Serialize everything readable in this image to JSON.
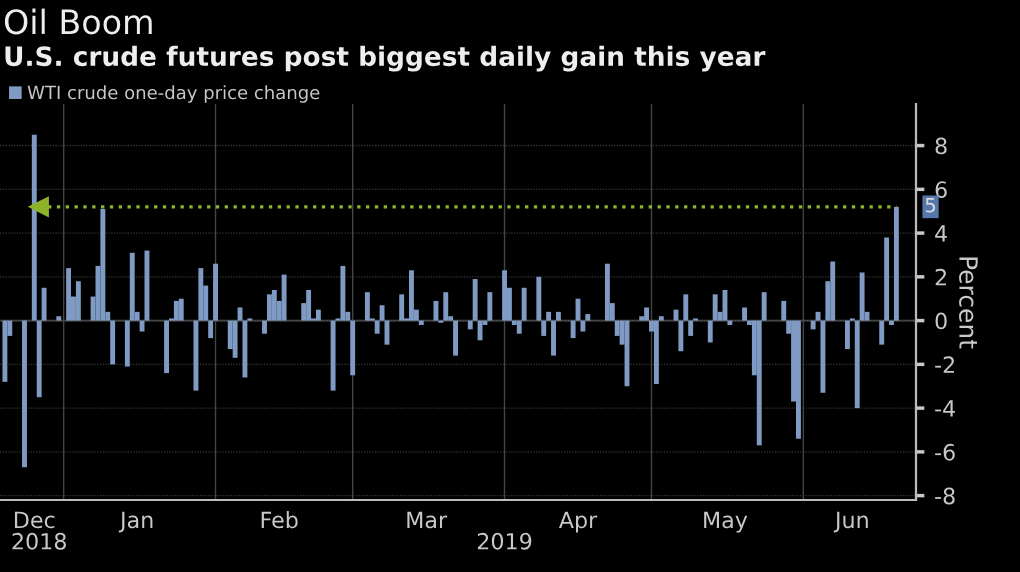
{
  "chart_data": {
    "type": "bar",
    "title": "Oil Boom",
    "subtitle": "U.S. crude futures post biggest daily gain this year",
    "ylabel": "Percent",
    "x": [
      "2018-12-20",
      "2018-12-21",
      "2018-12-24",
      "2018-12-26",
      "2018-12-27",
      "2018-12-28",
      "2018-12-31",
      "2019-01-02",
      "2019-01-03",
      "2019-01-04",
      "2019-01-07",
      "2019-01-08",
      "2019-01-09",
      "2019-01-10",
      "2019-01-11",
      "2019-01-14",
      "2019-01-15",
      "2019-01-16",
      "2019-01-17",
      "2019-01-18",
      "2019-01-22",
      "2019-01-23",
      "2019-01-24",
      "2019-01-25",
      "2019-01-28",
      "2019-01-29",
      "2019-01-30",
      "2019-01-31",
      "2019-02-01",
      "2019-02-04",
      "2019-02-05",
      "2019-02-06",
      "2019-02-07",
      "2019-02-08",
      "2019-02-11",
      "2019-02-12",
      "2019-02-13",
      "2019-02-14",
      "2019-02-15",
      "2019-02-19",
      "2019-02-20",
      "2019-02-21",
      "2019-02-22",
      "2019-02-25",
      "2019-02-26",
      "2019-02-27",
      "2019-02-28",
      "2019-03-01",
      "2019-03-04",
      "2019-03-05",
      "2019-03-06",
      "2019-03-07",
      "2019-03-08",
      "2019-03-11",
      "2019-03-12",
      "2019-03-13",
      "2019-03-14",
      "2019-03-15",
      "2019-03-18",
      "2019-03-19",
      "2019-03-20",
      "2019-03-21",
      "2019-03-22",
      "2019-03-25",
      "2019-03-26",
      "2019-03-27",
      "2019-03-28",
      "2019-03-29",
      "2019-04-01",
      "2019-04-02",
      "2019-04-03",
      "2019-04-04",
      "2019-04-05",
      "2019-04-08",
      "2019-04-09",
      "2019-04-10",
      "2019-04-11",
      "2019-04-12",
      "2019-04-15",
      "2019-04-16",
      "2019-04-17",
      "2019-04-18",
      "2019-04-22",
      "2019-04-23",
      "2019-04-24",
      "2019-04-25",
      "2019-04-26",
      "2019-04-29",
      "2019-04-30",
      "2019-05-01",
      "2019-05-02",
      "2019-05-03",
      "2019-05-06",
      "2019-05-07",
      "2019-05-08",
      "2019-05-09",
      "2019-05-10",
      "2019-05-13",
      "2019-05-14",
      "2019-05-15",
      "2019-05-16",
      "2019-05-17",
      "2019-05-20",
      "2019-05-21",
      "2019-05-22",
      "2019-05-23",
      "2019-05-24",
      "2019-05-28",
      "2019-05-29",
      "2019-05-30",
      "2019-05-31",
      "2019-06-03",
      "2019-06-04",
      "2019-06-05",
      "2019-06-06",
      "2019-06-07",
      "2019-06-10",
      "2019-06-11",
      "2019-06-12",
      "2019-06-13",
      "2019-06-14",
      "2019-06-17",
      "2019-06-18",
      "2019-06-19",
      "2019-06-20"
    ],
    "series": [
      {
        "name": "WTI crude one-day price change",
        "color": "#7f9bc4",
        "values": [
          -2.8,
          -0.7,
          -6.7,
          8.5,
          -3.5,
          1.5,
          0.2,
          2.4,
          1.1,
          1.8,
          1.1,
          2.5,
          5.1,
          0.4,
          -2.0,
          -2.1,
          3.1,
          0.4,
          -0.5,
          3.2,
          -2.4,
          0.1,
          0.9,
          1.0,
          -3.2,
          2.4,
          1.6,
          -0.8,
          2.6,
          -1.3,
          -1.7,
          0.6,
          -2.6,
          0.1,
          -0.6,
          1.2,
          1.4,
          0.9,
          2.1,
          0.8,
          1.4,
          0.1,
          0.5,
          -3.2,
          0.1,
          2.5,
          0.4,
          -2.5,
          1.3,
          0.1,
          -0.6,
          0.7,
          -1.1,
          1.2,
          0.1,
          2.3,
          0.5,
          -0.2,
          0.9,
          -0.1,
          1.3,
          0.2,
          -1.6,
          -0.4,
          1.9,
          -0.9,
          -0.2,
          1.3,
          2.3,
          1.5,
          -0.2,
          -0.6,
          1.5,
          2.0,
          -0.7,
          0.4,
          -1.6,
          0.4,
          -0.8,
          1.0,
          -0.5,
          0.3,
          2.6,
          0.8,
          -0.7,
          -1.1,
          -3.0,
          0.2,
          0.6,
          -0.5,
          -2.9,
          0.2,
          0.5,
          -1.4,
          1.2,
          -0.7,
          0.1,
          -1.0,
          1.2,
          0.4,
          1.4,
          -0.2,
          0.6,
          -0.2,
          -2.5,
          -5.7,
          1.3,
          0.9,
          -0.6,
          -3.7,
          -5.4,
          -0.4,
          0.4,
          -3.3,
          1.8,
          2.7,
          -1.3,
          0.1,
          -4.0,
          2.2,
          0.4,
          -1.1,
          3.8,
          -0.2,
          5.2
        ]
      }
    ],
    "xlim": [
      "2018-12-19",
      "2019-06-24"
    ],
    "xticks": [
      {
        "value": "2018-12-26",
        "label": "Dec"
      },
      {
        "value": "2019-01-01",
        "label": null
      },
      {
        "value": "2019-01-16",
        "label": "Jan"
      },
      {
        "value": "2019-02-01",
        "label": null
      },
      {
        "value": "2019-02-14",
        "label": "Feb"
      },
      {
        "value": "2019-03-01",
        "label": null
      },
      {
        "value": "2019-03-16",
        "label": "Mar"
      },
      {
        "value": "2019-04-01",
        "label": null
      },
      {
        "value": "2019-04-16",
        "label": "Apr"
      },
      {
        "value": "2019-05-01",
        "label": null
      },
      {
        "value": "2019-05-16",
        "label": "May"
      },
      {
        "value": "2019-06-01",
        "label": null
      },
      {
        "value": "2019-06-11",
        "label": "Jun"
      }
    ],
    "ylim": [
      -8.2,
      9.9
    ],
    "yticks": [
      -8,
      -6,
      -4,
      -2,
      0,
      2,
      4,
      6,
      8
    ],
    "ref_lines": [
      {
        "axis": "y",
        "value": 5.2,
        "label": "5",
        "color": "#8db32a",
        "line_style": "dotted"
      }
    ],
    "x2lim": [
      "2018-12-19",
      "2019-06-24"
    ],
    "x2ticks": [
      {
        "value": "2018-12-27",
        "label": "2018"
      },
      {
        "value": "2019-04-01",
        "label": "2019"
      }
    ],
    "grid": true,
    "legend": "top left"
  }
}
